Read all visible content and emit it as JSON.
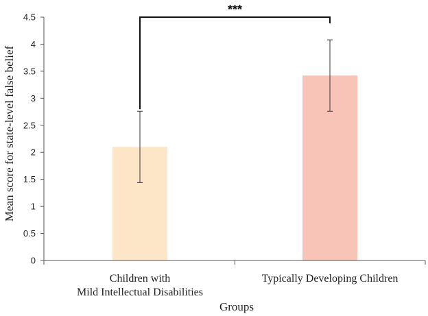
{
  "chart_data": {
    "type": "bar",
    "title": "",
    "xlabel": "Groups",
    "ylabel": "Mean score for state-level  false belief",
    "ylim": [
      0,
      4.5
    ],
    "yticks": [
      "0",
      "0.5",
      "1",
      "1.5",
      "2",
      "2.5",
      "3",
      "3.5",
      "4",
      "4.5"
    ],
    "yticks_values": [
      0,
      0.5,
      1,
      1.5,
      2,
      2.5,
      3,
      3.5,
      4,
      4.5
    ],
    "categories": [
      [
        "Children with",
        "Mild Intellectual Disabilities"
      ],
      [
        "Typically Developing Children"
      ]
    ],
    "values": [
      2.1,
      3.42
    ],
    "errors": [
      0.66,
      0.66
    ],
    "colors": [
      "#fde6c8",
      "#f9c4b8"
    ],
    "significance": {
      "from": 0,
      "to": 1,
      "label": "***",
      "y": 4.5
    }
  }
}
